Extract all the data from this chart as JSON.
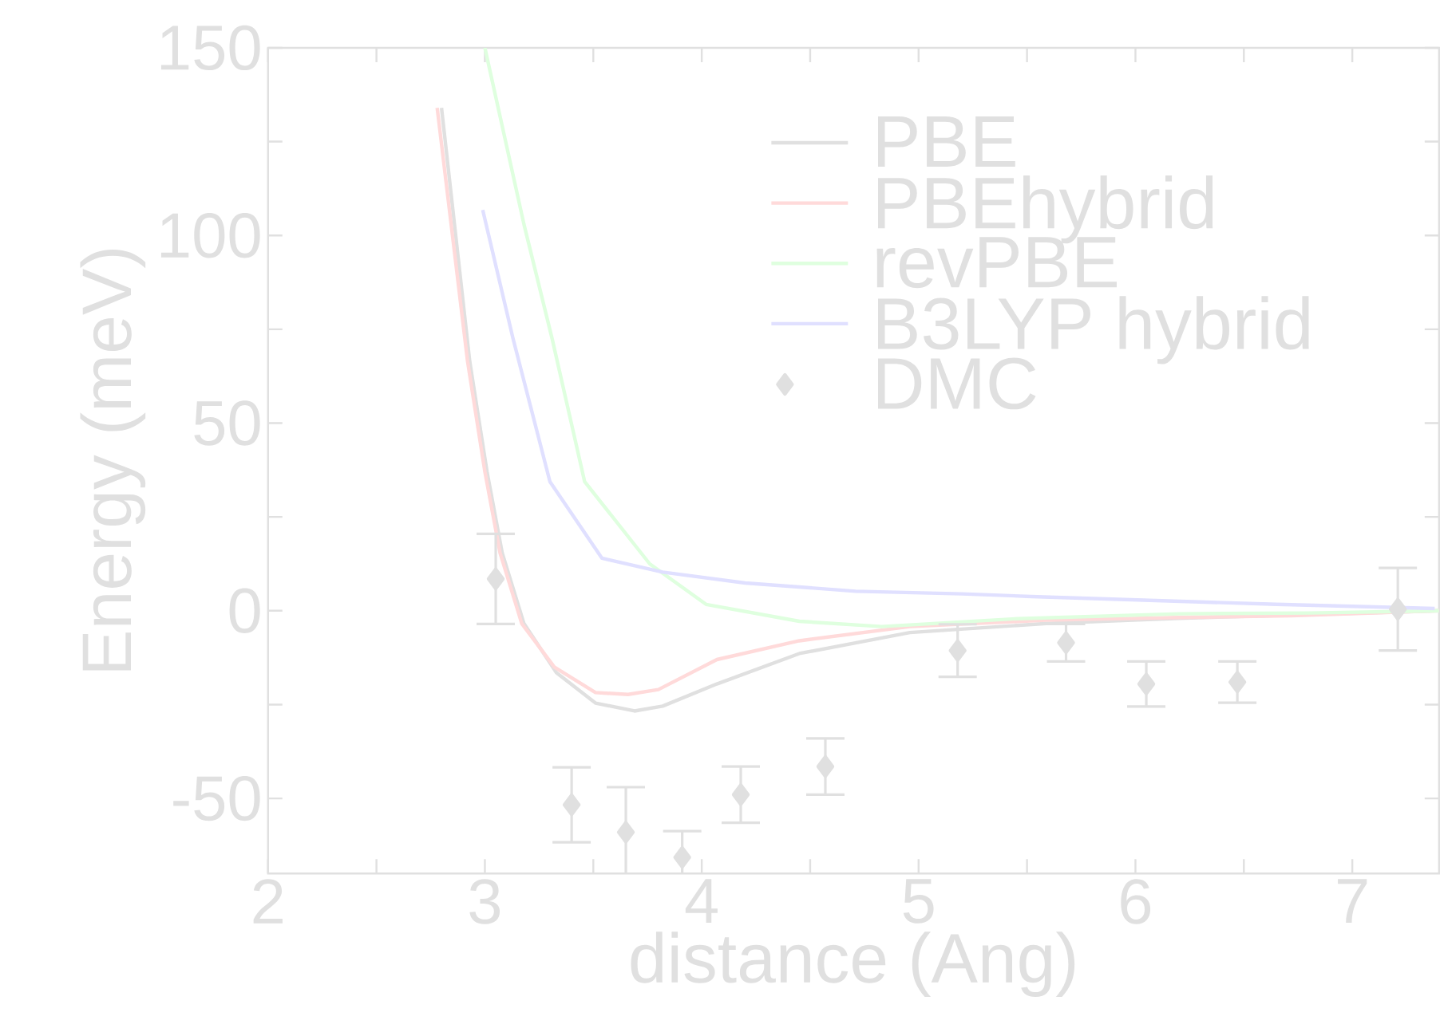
{
  "chart_data": {
    "type": "line",
    "xlabel": "distance (Ang)",
    "ylabel": "Energy (meV)",
    "xlim": [
      2,
      7.4
    ],
    "ylim": [
      -70,
      150
    ],
    "xticks": [
      2,
      {
        "value": 2.5,
        "label": null
      },
      3,
      {
        "value": 3.5,
        "label": null
      },
      4,
      {
        "value": 4.5,
        "label": null
      },
      5,
      {
        "value": 5.5,
        "label": null
      },
      6,
      {
        "value": 6.5,
        "label": null
      },
      7
    ],
    "yticks": [
      -50,
      {
        "value": -25,
        "label": null
      },
      0,
      {
        "value": 25,
        "label": null
      },
      50,
      {
        "value": 75,
        "label": null
      },
      100,
      {
        "value": 125,
        "label": null
      },
      150
    ],
    "legend": "top right",
    "grid": false,
    "line_style": "solid",
    "series": [
      {
        "name": "PBE",
        "color": "#e0e0e0",
        "marker": "none",
        "x": [
          2.8,
          2.93,
          3.01,
          3.08,
          3.18,
          3.33,
          3.51,
          3.69,
          3.82,
          4.07,
          4.45,
          4.96,
          5.59,
          6.2,
          6.8,
          7.4
        ],
        "values": [
          134,
          66.5,
          37,
          15.4,
          -3.4,
          -16.5,
          -24.6,
          -26.7,
          -25.4,
          -19.5,
          -11.4,
          -5.8,
          -3.4,
          -2,
          -1,
          0
        ]
      },
      {
        "name": "PBEhybrid",
        "color": "#ffdada",
        "marker": "none",
        "x": [
          2.78,
          2.92,
          3.0,
          3.07,
          3.17,
          3.32,
          3.51,
          3.66,
          3.8,
          4.07,
          4.45,
          4.96,
          5.59,
          6.2,
          6.72,
          7.4
        ],
        "values": [
          134,
          66.5,
          37,
          15.4,
          -3.4,
          -15,
          -21.8,
          -22.3,
          -21,
          -13,
          -8,
          -4.2,
          -2.5,
          -1.8,
          -1.3,
          0
        ]
      },
      {
        "name": "revPBE",
        "color": "#dfffdf",
        "marker": "none",
        "x": [
          3.0,
          3.18,
          3.31,
          3.46,
          3.76,
          4.02,
          4.45,
          4.83,
          5.46,
          6.2,
          6.8,
          7.4
        ],
        "values": [
          150,
          103,
          72.5,
          34.4,
          12.5,
          1.7,
          -2.8,
          -4.2,
          -2.1,
          -0.8,
          -0.6,
          0
        ]
      },
      {
        "name": "B3LYP hybrid",
        "color": "#e0e0ff",
        "marker": "none",
        "x": [
          2.99,
          3.13,
          3.3,
          3.54,
          3.82,
          4.2,
          4.71,
          5.2,
          5.52,
          6.65,
          7.38
        ],
        "values": [
          106.8,
          72.5,
          34.4,
          14,
          10.3,
          7.4,
          5.2,
          4.5,
          3.8,
          1.7,
          0.6
        ]
      },
      {
        "name": "DMC",
        "color": "#e0e0e0",
        "type": "scatter",
        "marker": "diamond",
        "x": [
          3.05,
          3.4,
          3.65,
          3.91,
          4.18,
          4.57,
          5.18,
          5.68,
          6.05,
          6.47,
          7.21
        ],
        "values": [
          8.5,
          -51.7,
          -59,
          -65.7,
          -49,
          -41.5,
          -10.6,
          -8.5,
          -19.5,
          -19,
          0.4
        ],
        "errors": [
          12,
          10,
          12,
          7,
          7.5,
          7.5,
          7,
          5,
          6,
          5.5,
          11
        ]
      }
    ]
  }
}
